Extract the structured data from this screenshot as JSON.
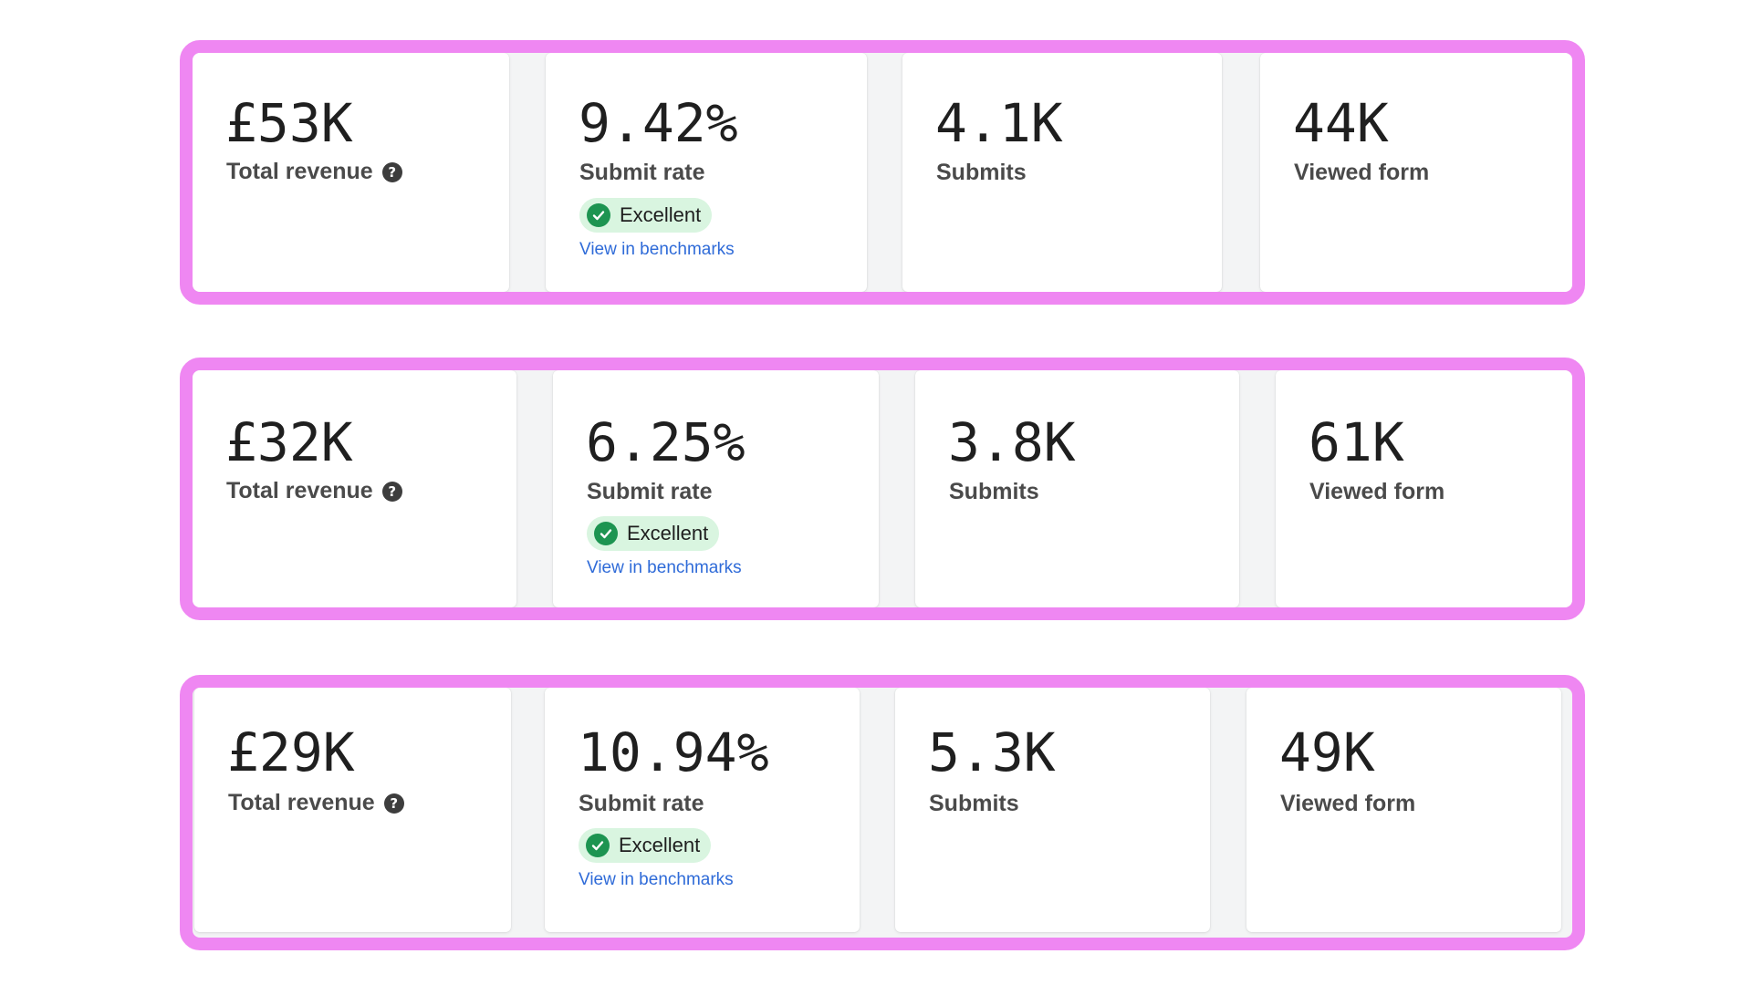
{
  "panels": [
    {
      "total_revenue": {
        "value": "£53K",
        "label": "Total revenue",
        "help": "?"
      },
      "submit_rate": {
        "value": "9.42%",
        "label": "Submit rate",
        "badge": "Excellent",
        "link": "View in benchmarks"
      },
      "submits": {
        "value": "4.1K",
        "label": "Submits"
      },
      "viewed_form": {
        "value": "44K",
        "label": "Viewed form"
      }
    },
    {
      "total_revenue": {
        "value": "£32K",
        "label": "Total revenue",
        "help": "?"
      },
      "submit_rate": {
        "value": "6.25%",
        "label": "Submit rate",
        "badge": "Excellent",
        "link": "View in benchmarks"
      },
      "submits": {
        "value": "3.8K",
        "label": "Submits"
      },
      "viewed_form": {
        "value": "61K",
        "label": "Viewed form"
      }
    },
    {
      "total_revenue": {
        "value": "£29K",
        "label": "Total revenue",
        "help": "?"
      },
      "submit_rate": {
        "value": "10.94%",
        "label": "Submit rate",
        "badge": "Excellent",
        "link": "View in benchmarks"
      },
      "submits": {
        "value": "5.3K",
        "label": "Submits"
      },
      "viewed_form": {
        "value": "49K",
        "label": "Viewed form"
      }
    }
  ],
  "colors": {
    "panel_border": "#ef87f2",
    "badge_bg": "#d9f5e0",
    "badge_icon": "#1d9451",
    "link": "#2f6bd8"
  },
  "icons": {
    "help": "question-circle-icon",
    "badge": "check-circle-icon"
  }
}
